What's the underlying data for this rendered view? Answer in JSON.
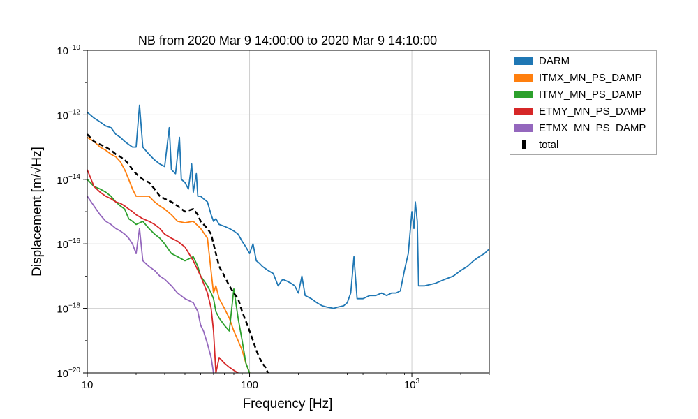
{
  "chart_data": {
    "type": "line",
    "title": "NB from 2020 Mar 9 14:00:00 to 2020 Mar 9 14:10:00",
    "xlabel": "Frequency [Hz]",
    "ylabel": "Displacement [m/√Hz]",
    "xscale": "log",
    "yscale": "log",
    "xlim": [
      10,
      3000
    ],
    "ylim": [
      1e-20,
      1e-10
    ],
    "grid": true,
    "legend_position": "outside-top-right",
    "x_ticks": [
      {
        "value": 10,
        "label": "10"
      },
      {
        "value": 100,
        "label": "100"
      },
      {
        "value": 1000,
        "label": "10",
        "sup": "3"
      }
    ],
    "y_ticks": [
      {
        "value": 1e-20,
        "label": "10",
        "sup": "−20"
      },
      {
        "value": 1e-18,
        "label": "10",
        "sup": "−18"
      },
      {
        "value": 1e-16,
        "label": "10",
        "sup": "−16"
      },
      {
        "value": 1e-14,
        "label": "10",
        "sup": "−14"
      },
      {
        "value": 1e-12,
        "label": "10",
        "sup": "−12"
      },
      {
        "value": 1e-10,
        "label": "10",
        "sup": "−10"
      }
    ],
    "series": [
      {
        "name": "DARM",
        "color": "#1f77b4",
        "style": "solid",
        "points": [
          [
            10,
            1.2e-12
          ],
          [
            11,
            8e-13
          ],
          [
            12,
            6e-13
          ],
          [
            13,
            4.5e-13
          ],
          [
            14,
            4e-13
          ],
          [
            15,
            2.5e-13
          ],
          [
            16,
            2e-13
          ],
          [
            17,
            1.5e-13
          ],
          [
            18,
            1.2e-13
          ],
          [
            19,
            1e-13
          ],
          [
            20,
            1e-13
          ],
          [
            21,
            2e-12
          ],
          [
            22,
            1e-13
          ],
          [
            24,
            6e-14
          ],
          [
            26,
            4e-14
          ],
          [
            28,
            3e-14
          ],
          [
            30,
            2.5e-14
          ],
          [
            32,
            4e-13
          ],
          [
            33,
            2e-14
          ],
          [
            35,
            1.5e-14
          ],
          [
            37,
            2e-13
          ],
          [
            38,
            1e-14
          ],
          [
            40,
            8e-15
          ],
          [
            42,
            5e-15
          ],
          [
            44,
            3e-14
          ],
          [
            45,
            4e-15
          ],
          [
            47,
            1.5e-14
          ],
          [
            48,
            3e-15
          ],
          [
            50,
            3e-15
          ],
          [
            52,
            2.5e-15
          ],
          [
            55,
            2e-15
          ],
          [
            58,
            8e-16
          ],
          [
            60,
            5e-16
          ],
          [
            62,
            6e-16
          ],
          [
            65,
            4e-16
          ],
          [
            70,
            3.5e-16
          ],
          [
            75,
            3e-16
          ],
          [
            80,
            2.5e-16
          ],
          [
            85,
            2e-16
          ],
          [
            90,
            1.2e-16
          ],
          [
            95,
            8e-17
          ],
          [
            100,
            5e-17
          ],
          [
            105,
            1e-16
          ],
          [
            110,
            3e-17
          ],
          [
            115,
            2.5e-17
          ],
          [
            120,
            2e-17
          ],
          [
            130,
            1.5e-17
          ],
          [
            140,
            1.2e-17
          ],
          [
            150,
            5e-18
          ],
          [
            160,
            8e-18
          ],
          [
            170,
            7e-18
          ],
          [
            180,
            6e-18
          ],
          [
            190,
            5e-18
          ],
          [
            200,
            3e-18
          ],
          [
            210,
            1e-17
          ],
          [
            220,
            2.5e-18
          ],
          [
            240,
            2e-18
          ],
          [
            260,
            1.5e-18
          ],
          [
            280,
            1.2e-18
          ],
          [
            300,
            1.1e-18
          ],
          [
            330,
            1e-18
          ],
          [
            350,
            1.1e-18
          ],
          [
            380,
            1.2e-18
          ],
          [
            400,
            1.5e-18
          ],
          [
            420,
            3e-18
          ],
          [
            440,
            4e-17
          ],
          [
            460,
            2e-18
          ],
          [
            500,
            2e-18
          ],
          [
            550,
            2.5e-18
          ],
          [
            600,
            2.5e-18
          ],
          [
            650,
            3e-18
          ],
          [
            700,
            2.5e-18
          ],
          [
            750,
            3e-18
          ],
          [
            800,
            3e-18
          ],
          [
            850,
            3.5e-18
          ],
          [
            900,
            1.5e-17
          ],
          [
            950,
            5e-17
          ],
          [
            1000,
            1e-15
          ],
          [
            1030,
            3e-16
          ],
          [
            1050,
            2e-15
          ],
          [
            1080,
            5e-16
          ],
          [
            1100,
            5e-18
          ],
          [
            1200,
            5e-18
          ],
          [
            1400,
            6e-18
          ],
          [
            1600,
            8e-18
          ],
          [
            1800,
            1e-17
          ],
          [
            2000,
            1.5e-17
          ],
          [
            2200,
            2e-17
          ],
          [
            2400,
            3e-17
          ],
          [
            2600,
            4e-17
          ],
          [
            2800,
            5e-17
          ],
          [
            3000,
            7e-17
          ]
        ]
      },
      {
        "name": "ITMX_MN_PS_DAMP",
        "color": "#ff7f0e",
        "style": "solid",
        "points": [
          [
            10,
            2e-13
          ],
          [
            11,
            1.5e-13
          ],
          [
            12,
            1e-13
          ],
          [
            13,
            8e-14
          ],
          [
            14,
            6e-14
          ],
          [
            15,
            5e-14
          ],
          [
            16,
            3.5e-14
          ],
          [
            17,
            2e-14
          ],
          [
            18,
            1e-14
          ],
          [
            19,
            5e-15
          ],
          [
            20,
            3e-15
          ],
          [
            22,
            3e-15
          ],
          [
            24,
            3e-15
          ],
          [
            26,
            2e-15
          ],
          [
            28,
            1.5e-15
          ],
          [
            30,
            1.2e-15
          ],
          [
            33,
            8e-16
          ],
          [
            36,
            5e-16
          ],
          [
            40,
            4.5e-16
          ],
          [
            45,
            5e-16
          ],
          [
            50,
            3e-16
          ],
          [
            55,
            1.5e-16
          ],
          [
            60,
            3e-18
          ],
          [
            62,
            5e-18
          ],
          [
            65,
            2e-18
          ],
          [
            70,
            1e-18
          ],
          [
            75,
            5e-19
          ],
          [
            80,
            2e-19
          ],
          [
            85,
            1e-19
          ],
          [
            90,
            5e-20
          ],
          [
            95,
            2e-20
          ],
          [
            100,
            1e-20
          ]
        ]
      },
      {
        "name": "ITMY_MN_PS_DAMP",
        "color": "#2ca02c",
        "style": "solid",
        "points": [
          [
            10,
            1e-14
          ],
          [
            11,
            6e-15
          ],
          [
            12,
            5e-15
          ],
          [
            13,
            4e-15
          ],
          [
            14,
            3e-15
          ],
          [
            15,
            2e-15
          ],
          [
            16,
            1.5e-15
          ],
          [
            17,
            1.2e-15
          ],
          [
            18,
            6e-16
          ],
          [
            19,
            5e-16
          ],
          [
            20,
            4e-16
          ],
          [
            22,
            5e-16
          ],
          [
            24,
            3e-16
          ],
          [
            26,
            2e-16
          ],
          [
            28,
            1.5e-16
          ],
          [
            30,
            1e-16
          ],
          [
            33,
            5e-17
          ],
          [
            36,
            4e-17
          ],
          [
            40,
            3e-17
          ],
          [
            45,
            4e-17
          ],
          [
            48,
            2e-17
          ],
          [
            50,
            1e-17
          ],
          [
            55,
            5e-18
          ],
          [
            58,
            3e-18
          ],
          [
            60,
            2e-18
          ],
          [
            62,
            8e-19
          ],
          [
            65,
            5e-19
          ],
          [
            70,
            3e-19
          ],
          [
            75,
            2e-19
          ],
          [
            80,
            4e-18
          ],
          [
            85,
            5e-19
          ],
          [
            90,
            1e-19
          ],
          [
            95,
            2e-20
          ],
          [
            100,
            1e-20
          ]
        ]
      },
      {
        "name": "ETMY_MN_PS_DAMP",
        "color": "#d62728",
        "style": "solid",
        "points": [
          [
            10,
            2e-14
          ],
          [
            11,
            6e-15
          ],
          [
            12,
            4e-15
          ],
          [
            13,
            3e-15
          ],
          [
            14,
            2.5e-15
          ],
          [
            15,
            2e-15
          ],
          [
            16,
            1.8e-15
          ],
          [
            17,
            1.5e-15
          ],
          [
            18,
            1.2e-15
          ],
          [
            19,
            1e-15
          ],
          [
            20,
            8e-16
          ],
          [
            22,
            6e-16
          ],
          [
            24,
            5e-16
          ],
          [
            26,
            4e-16
          ],
          [
            28,
            3e-16
          ],
          [
            30,
            2e-16
          ],
          [
            33,
            1.5e-16
          ],
          [
            36,
            1.2e-16
          ],
          [
            40,
            8e-17
          ],
          [
            45,
            3e-17
          ],
          [
            50,
            1e-17
          ],
          [
            55,
            3e-18
          ],
          [
            58,
            1e-18
          ],
          [
            60,
            2e-19
          ],
          [
            62,
            1e-20
          ],
          [
            65,
            3e-20
          ],
          [
            70,
            2e-20
          ],
          [
            75,
            1.5e-20
          ],
          [
            80,
            1.2e-20
          ],
          [
            85,
            1e-20
          ]
        ]
      },
      {
        "name": "ETMX_MN_PS_DAMP",
        "color": "#9467bd",
        "style": "solid",
        "points": [
          [
            10,
            3e-15
          ],
          [
            11,
            1.5e-15
          ],
          [
            12,
            8e-16
          ],
          [
            13,
            5e-16
          ],
          [
            14,
            4e-16
          ],
          [
            15,
            3e-16
          ],
          [
            16,
            2.5e-16
          ],
          [
            17,
            2e-16
          ],
          [
            18,
            1.5e-16
          ],
          [
            19,
            1e-16
          ],
          [
            20,
            5e-17
          ],
          [
            21,
            3e-16
          ],
          [
            22,
            3e-17
          ],
          [
            24,
            2e-17
          ],
          [
            26,
            1.5e-17
          ],
          [
            28,
            1e-17
          ],
          [
            30,
            8e-18
          ],
          [
            33,
            5e-18
          ],
          [
            36,
            3e-18
          ],
          [
            40,
            2e-18
          ],
          [
            45,
            1.5e-18
          ],
          [
            48,
            8e-19
          ],
          [
            50,
            3e-19
          ],
          [
            52,
            2e-19
          ],
          [
            55,
            8e-20
          ],
          [
            58,
            3e-20
          ],
          [
            60,
            1e-20
          ]
        ]
      },
      {
        "name": "total",
        "color": "#000000",
        "style": "dashed",
        "points": [
          [
            10,
            2.5e-13
          ],
          [
            11,
            1.5e-13
          ],
          [
            12,
            1.2e-13
          ],
          [
            13,
            1e-13
          ],
          [
            14,
            8e-14
          ],
          [
            15,
            6e-14
          ],
          [
            16,
            5e-14
          ],
          [
            17,
            4e-14
          ],
          [
            18,
            3e-14
          ],
          [
            19,
            2e-14
          ],
          [
            20,
            1.5e-14
          ],
          [
            22,
            1e-14
          ],
          [
            24,
            8e-15
          ],
          [
            26,
            5e-15
          ],
          [
            28,
            3e-15
          ],
          [
            30,
            2.5e-15
          ],
          [
            33,
            2e-15
          ],
          [
            36,
            1.5e-15
          ],
          [
            40,
            1e-15
          ],
          [
            45,
            1.2e-15
          ],
          [
            48,
            8e-16
          ],
          [
            50,
            5e-16
          ],
          [
            55,
            3e-16
          ],
          [
            58,
            2e-16
          ],
          [
            60,
            1e-16
          ],
          [
            62,
            5e-17
          ],
          [
            65,
            2e-17
          ],
          [
            70,
            1e-17
          ],
          [
            75,
            5e-18
          ],
          [
            80,
            3e-18
          ],
          [
            85,
            2e-18
          ],
          [
            90,
            8e-19
          ],
          [
            95,
            4e-19
          ],
          [
            100,
            2e-19
          ],
          [
            105,
            1e-19
          ],
          [
            110,
            5e-20
          ],
          [
            115,
            3e-20
          ],
          [
            120,
            2e-20
          ],
          [
            125,
            1.5e-20
          ],
          [
            130,
            1e-20
          ]
        ]
      }
    ]
  }
}
